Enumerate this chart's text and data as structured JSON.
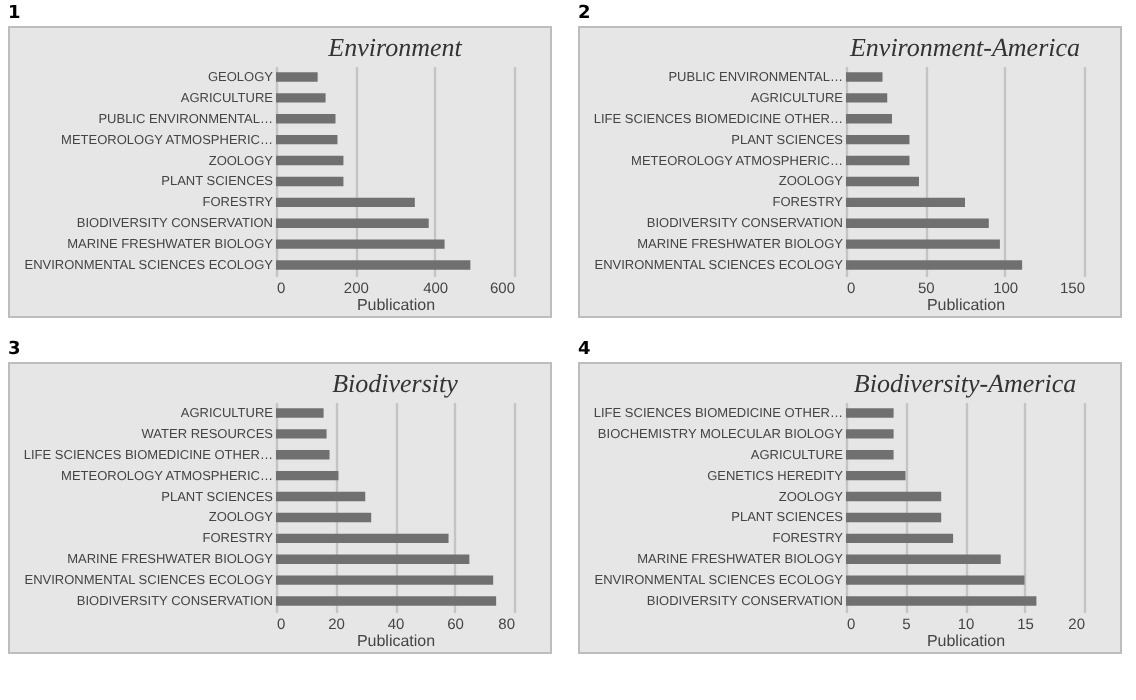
{
  "chart_data": [
    {
      "type": "bar",
      "orientation": "horizontal",
      "title": "Environment",
      "xlabel": "Publication",
      "annotations": [
        "1"
      ],
      "categories": [
        "GEOLOGY",
        "AGRICULTURE",
        "PUBLIC ENVIRONMENTAL…",
        "METEOROLOGY ATMOSPHERIC…",
        "ZOOLOGY",
        "PLANT SCIENCES",
        "FORESTRY",
        "BIODIVERSITY CONSERVATION",
        "MARINE FRESHWATER BIOLOGY",
        "ENVIRONMENTAL SCIENCES ECOLOGY"
      ],
      "values": [
        105,
        125,
        150,
        155,
        170,
        170,
        350,
        385,
        425,
        490
      ],
      "color": "#707070",
      "xlim": [
        0,
        600
      ],
      "xticks": [
        0,
        200,
        400,
        600
      ],
      "grid": "x"
    },
    {
      "type": "bar",
      "orientation": "horizontal",
      "title": "Environment-America",
      "xlabel": "Publication",
      "annotations": [
        "2"
      ],
      "categories": [
        "PUBLIC ENVIRONMENTAL…",
        "AGRICULTURE",
        "LIFE SCIENCES BIOMEDICINE OTHER…",
        "PLANT SCIENCES",
        "METEOROLOGY ATMOSPHERIC…",
        "ZOOLOGY",
        "FORESTRY",
        "BIODIVERSITY CONSERVATION",
        "MARINE FRESHWATER BIOLOGY",
        "ENVIRONMENTAL SCIENCES ECOLOGY"
      ],
      "values": [
        23,
        26,
        29,
        40,
        40,
        46,
        75,
        90,
        97,
        111
      ],
      "color": "#707070",
      "xlim": [
        0,
        150
      ],
      "xticks": [
        0,
        50,
        100,
        150
      ],
      "grid": "x"
    },
    {
      "type": "bar",
      "orientation": "horizontal",
      "title": "Biodiversity",
      "xlabel": "Publication",
      "annotations": [
        "3"
      ],
      "categories": [
        "AGRICULTURE",
        "WATER RESOURCES",
        "LIFE SCIENCES BIOMEDICINE OTHER…",
        "METEOROLOGY ATMOSPHERIC…",
        "PLANT SCIENCES",
        "ZOOLOGY",
        "FORESTRY",
        "MARINE FRESHWATER BIOLOGY",
        "ENVIRONMENTAL SCIENCES ECOLOGY",
        "BIODIVERSITY CONSERVATION"
      ],
      "values": [
        16,
        17,
        18,
        21,
        30,
        32,
        58,
        65,
        73,
        74
      ],
      "color": "#707070",
      "xlim": [
        0,
        80
      ],
      "xticks": [
        0,
        20,
        40,
        60,
        80
      ],
      "grid": "x"
    },
    {
      "type": "bar",
      "orientation": "horizontal",
      "title": "Biodiversity-America",
      "xlabel": "Publication",
      "annotations": [
        "4"
      ],
      "categories": [
        "LIFE SCIENCES BIOMEDICINE OTHER…",
        "BIOCHEMISTRY MOLECULAR BIOLOGY",
        "AGRICULTURE",
        "GENETICS HEREDITY",
        "ZOOLOGY",
        "PLANT SCIENCES",
        "FORESTRY",
        "MARINE FRESHWATER BIOLOGY",
        "ENVIRONMENTAL SCIENCES ECOLOGY",
        "BIODIVERSITY CONSERVATION"
      ],
      "values": [
        4,
        4,
        4,
        5,
        8,
        8,
        9,
        13,
        15,
        16
      ],
      "color": "#707070",
      "xlim": [
        0,
        20
      ],
      "xticks": [
        0,
        5,
        10,
        15,
        20
      ],
      "grid": "x"
    }
  ]
}
